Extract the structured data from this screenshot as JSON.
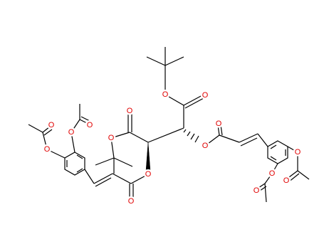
{
  "atoms": [
    {
      "label": "O"
    },
    {
      "label": "O"
    },
    {
      "label": "O"
    },
    {
      "label": "O"
    },
    {
      "label": "O"
    },
    {
      "label": "O"
    },
    {
      "label": "O"
    },
    {
      "label": "O"
    },
    {
      "label": "O"
    },
    {
      "label": "O"
    },
    {
      "label": "O"
    },
    {
      "label": "O"
    },
    {
      "label": "O"
    },
    {
      "label": "O"
    },
    {
      "label": "O"
    },
    {
      "label": "O"
    }
  ]
}
